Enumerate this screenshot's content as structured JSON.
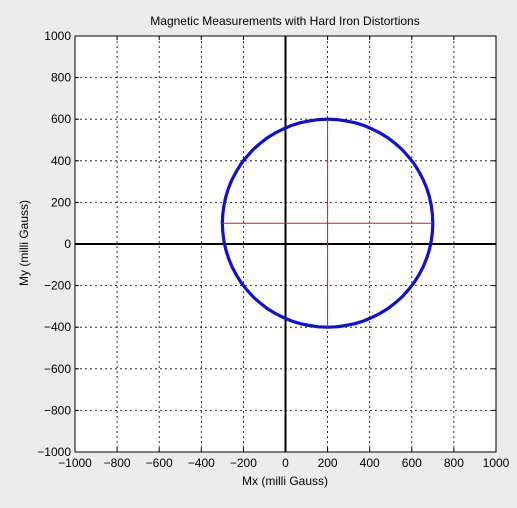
{
  "chart_data": {
    "type": "scatter",
    "title": "Magnetic Measurements with Hard Iron Distortions",
    "xlabel": "Mx (milli Gauss)",
    "ylabel": "My (milli Gauss)",
    "xlim": [
      -1000,
      1000
    ],
    "ylim": [
      -1000,
      1000
    ],
    "xticks": [
      -1000,
      -800,
      -600,
      -400,
      -200,
      0,
      200,
      400,
      600,
      800,
      1000
    ],
    "yticks": [
      -1000,
      -800,
      -600,
      -400,
      -200,
      0,
      200,
      400,
      600,
      800,
      1000
    ],
    "xtick_labels": [
      "−1000",
      "−800",
      "−600",
      "−400",
      "−200",
      "0",
      "200",
      "400",
      "600",
      "800",
      "1000"
    ],
    "ytick_labels": [
      "−1000",
      "−800",
      "−600",
      "−400",
      "−200",
      "0",
      "200",
      "400",
      "600",
      "800",
      "1000"
    ],
    "grid": true,
    "grid_style": "dotted",
    "origin_axes": true,
    "series": [
      {
        "kind": "ring",
        "color": "#1010d0",
        "center": [
          200,
          100
        ],
        "radius": 500,
        "points": [
          [
            700,
            100
          ],
          [
            698,
            143
          ],
          [
            692,
            187
          ],
          [
            683,
            229
          ],
          [
            670,
            271
          ],
          [
            653,
            311
          ],
          [
            633,
            350
          ],
          [
            610,
            387
          ],
          [
            583,
            421
          ],
          [
            554,
            454
          ],
          [
            521,
            483
          ],
          [
            487,
            510
          ],
          [
            450,
            533
          ],
          [
            411,
            553
          ],
          [
            371,
            570
          ],
          [
            329,
            583
          ],
          [
            287,
            592
          ],
          [
            243,
            598
          ],
          [
            200,
            600
          ],
          [
            157,
            598
          ],
          [
            113,
            592
          ],
          [
            71,
            583
          ],
          [
            29,
            570
          ],
          [
            -11,
            553
          ],
          [
            -50,
            533
          ],
          [
            -87,
            510
          ],
          [
            -121,
            483
          ],
          [
            -154,
            454
          ],
          [
            -183,
            421
          ],
          [
            -210,
            387
          ],
          [
            -233,
            350
          ],
          [
            -253,
            311
          ],
          [
            -270,
            271
          ],
          [
            -283,
            229
          ],
          [
            -292,
            187
          ],
          [
            -298,
            143
          ],
          [
            -300,
            100
          ],
          [
            -298,
            57
          ],
          [
            -292,
            13
          ],
          [
            -283,
            -29
          ],
          [
            -270,
            -71
          ],
          [
            -253,
            -111
          ],
          [
            -233,
            -150
          ],
          [
            -210,
            -187
          ],
          [
            -183,
            -221
          ],
          [
            -154,
            -254
          ],
          [
            -121,
            -283
          ],
          [
            -87,
            -310
          ],
          [
            -50,
            -333
          ],
          [
            -11,
            -353
          ],
          [
            29,
            -370
          ],
          [
            71,
            -383
          ],
          [
            113,
            -392
          ],
          [
            157,
            -398
          ],
          [
            200,
            -400
          ],
          [
            243,
            -398
          ],
          [
            287,
            -392
          ],
          [
            329,
            -383
          ],
          [
            371,
            -370
          ],
          [
            411,
            -353
          ],
          [
            450,
            -333
          ],
          [
            487,
            -310
          ],
          [
            521,
            -283
          ],
          [
            554,
            -254
          ],
          [
            583,
            -221
          ],
          [
            610,
            -187
          ],
          [
            633,
            -150
          ],
          [
            653,
            -111
          ],
          [
            670,
            -71
          ],
          [
            683,
            -29
          ],
          [
            692,
            13
          ],
          [
            698,
            57
          ]
        ]
      },
      {
        "kind": "segment",
        "color": "#d02020",
        "points": [
          [
            -300,
            100
          ],
          [
            700,
            100
          ]
        ]
      },
      {
        "kind": "segment",
        "color": "#d02020",
        "points": [
          [
            200,
            -400
          ],
          [
            200,
            600
          ]
        ]
      }
    ]
  }
}
